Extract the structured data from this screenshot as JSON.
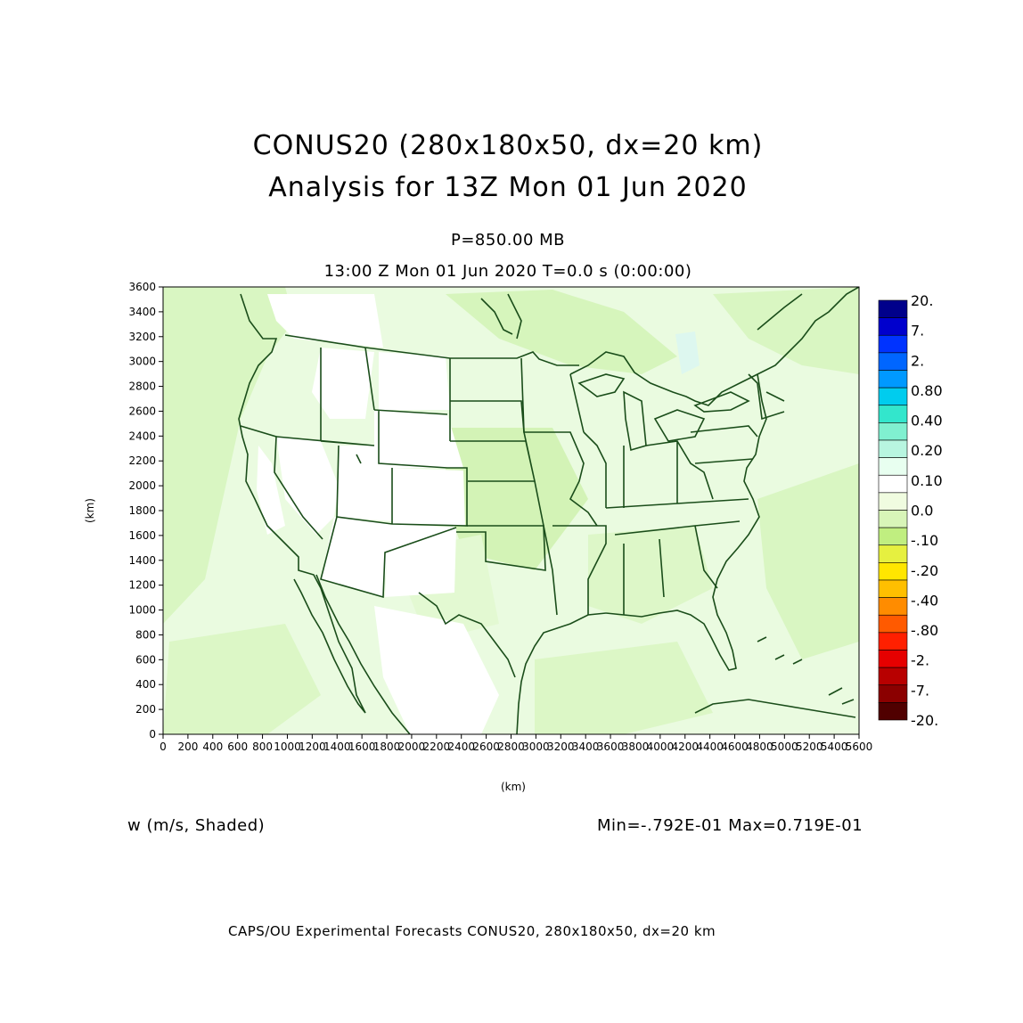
{
  "title": {
    "line1": "CONUS20 (280x180x50, dx=20 km)",
    "line2": "Analysis for 13Z Mon 01 Jun 2020"
  },
  "level": "P=850.00 MB",
  "time": "13:00 Z Mon 01 Jun 2020    T=0.0 s (0:00:00)",
  "axes": {
    "x_label": "(km)",
    "y_label": "(km)",
    "x_ticks": [
      "0",
      "200",
      "400",
      "600",
      "800",
      "1000",
      "1200",
      "1400",
      "1600",
      "1800",
      "2000",
      "2200",
      "2400",
      "2600",
      "2800",
      "3000",
      "3200",
      "3400",
      "3600",
      "3800",
      "4000",
      "4200",
      "4400",
      "4600",
      "4800",
      "5000",
      "5200",
      "5400",
      "5600"
    ],
    "y_ticks": [
      "0",
      "200",
      "400",
      "600",
      "800",
      "1000",
      "1200",
      "1400",
      "1600",
      "1800",
      "2000",
      "2200",
      "2400",
      "2600",
      "2800",
      "3000",
      "3200",
      "3400",
      "3600"
    ],
    "x_range": [
      0,
      5600
    ],
    "y_range": [
      0,
      3600
    ]
  },
  "colorbar": {
    "labels": [
      "20.",
      "7.",
      "2.",
      "0.80",
      "0.40",
      "0.20",
      "0.10",
      "0.0",
      "-.10",
      "-.20",
      "-.40",
      "-.80",
      "-2.",
      "-7.",
      "-20."
    ],
    "colors": [
      "#00008b",
      "#0000cd",
      "#0033ff",
      "#0066ff",
      "#0099ff",
      "#00ccee",
      "#33e6cc",
      "#80f0d0",
      "#b8f5e0",
      "#e8fff0",
      "#ffffff",
      "#f0fce0",
      "#d8f5b8",
      "#c0ee80",
      "#e6f040",
      "#ffe600",
      "#ffbf00",
      "#ff8c00",
      "#ff5a00",
      "#ff2000",
      "#e60000",
      "#b80000",
      "#8b0000",
      "#500000"
    ]
  },
  "field_label": "w (m/s, Shaded)",
  "minmax": "Min=-.792E-01 Max=0.719E-01",
  "footer": "CAPS/OU Experimental Forecasts  CONUS20, 280x180x50, dx=20 km",
  "map_colors": {
    "background": "#eafbe0",
    "light": "#d6f5c0",
    "white": "#ffffff",
    "boundary": "#1a4d1a"
  }
}
